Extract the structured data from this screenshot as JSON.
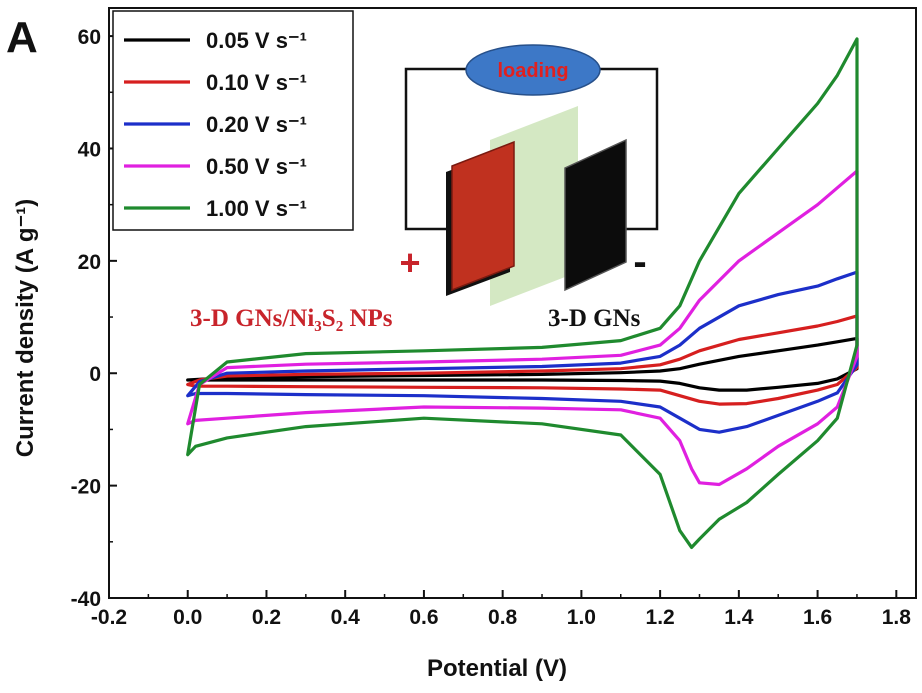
{
  "panel_label": "A",
  "inset": {
    "loading_label": "loading",
    "plus_sign": "+",
    "minus_sign": "-",
    "positive_electrode_label": "3-D GNs/Ni₃S₂ NPs",
    "negative_electrode_label": "3-D GNs"
  },
  "chart_data": {
    "type": "line",
    "title": "",
    "xlabel": "Potential (V)",
    "ylabel": "Current density (A g⁻¹)",
    "xlim": [
      -0.2,
      1.85
    ],
    "ylim": [
      -40,
      65
    ],
    "xticks": [
      -0.2,
      0.0,
      0.2,
      0.4,
      0.6,
      0.8,
      1.0,
      1.2,
      1.4,
      1.6,
      1.8
    ],
    "xtick_labels": [
      "-0.2",
      "0.0",
      "0.2",
      "0.4",
      "0.6",
      "0.8",
      "1.0",
      "1.2",
      "1.4",
      "1.6",
      "1.8"
    ],
    "yticks": [
      -40,
      -20,
      0,
      20,
      40,
      60
    ],
    "ytick_labels": [
      "-40",
      "-20",
      "0",
      "20",
      "40",
      "60"
    ],
    "grid": false,
    "legend_position": "top-left",
    "series": [
      {
        "name": "0.05 V s⁻¹",
        "color": "#000000",
        "x": [
          0.0,
          0.1,
          0.3,
          0.6,
          0.9,
          1.1,
          1.2,
          1.25,
          1.3,
          1.4,
          1.5,
          1.6,
          1.65,
          1.7,
          1.7,
          1.65,
          1.6,
          1.5,
          1.42,
          1.35,
          1.3,
          1.25,
          1.2,
          1.1,
          0.9,
          0.6,
          0.3,
          0.1,
          0.02,
          0.0
        ],
        "y": [
          -1.2,
          -0.8,
          -0.6,
          -0.4,
          -0.2,
          0.1,
          0.4,
          0.8,
          1.6,
          3.0,
          4.0,
          5.0,
          5.6,
          6.2,
          0.8,
          -1.0,
          -1.8,
          -2.5,
          -3.0,
          -3.0,
          -2.6,
          -1.8,
          -1.4,
          -1.3,
          -1.2,
          -1.2,
          -1.2,
          -1.2,
          -1.2,
          -1.2
        ]
      },
      {
        "name": "0.10 V s⁻¹",
        "color": "#d61f1f",
        "x": [
          0.0,
          0.03,
          0.1,
          0.3,
          0.6,
          0.9,
          1.1,
          1.2,
          1.25,
          1.3,
          1.4,
          1.5,
          1.6,
          1.65,
          1.7,
          1.7,
          1.65,
          1.6,
          1.5,
          1.42,
          1.35,
          1.3,
          1.25,
          1.2,
          1.1,
          0.9,
          0.6,
          0.3,
          0.1,
          0.02,
          0.0
        ],
        "y": [
          -2.0,
          -1.2,
          -0.5,
          -0.2,
          0.0,
          0.4,
          0.8,
          1.5,
          2.5,
          4.0,
          6.0,
          7.2,
          8.4,
          9.2,
          10.2,
          1.0,
          -2.0,
          -3.0,
          -4.5,
          -5.4,
          -5.5,
          -5.0,
          -4.0,
          -3.0,
          -2.8,
          -2.6,
          -2.5,
          -2.4,
          -2.3,
          -2.3,
          -2.0
        ]
      },
      {
        "name": "0.20 V s⁻¹",
        "color": "#1c2fc9",
        "x": [
          0.0,
          0.03,
          0.1,
          0.3,
          0.6,
          0.9,
          1.1,
          1.2,
          1.25,
          1.3,
          1.4,
          1.5,
          1.6,
          1.65,
          1.7,
          1.7,
          1.65,
          1.6,
          1.5,
          1.42,
          1.35,
          1.3,
          1.25,
          1.2,
          1.1,
          0.9,
          0.6,
          0.3,
          0.1,
          0.02,
          0.0
        ],
        "y": [
          -4.0,
          -1.5,
          0.0,
          0.4,
          0.8,
          1.2,
          1.8,
          3.0,
          5.0,
          8.0,
          12.0,
          14.0,
          15.5,
          16.8,
          18.0,
          1.5,
          -3.5,
          -5.0,
          -7.5,
          -9.5,
          -10.5,
          -10.0,
          -8.0,
          -6.0,
          -5.0,
          -4.5,
          -4.0,
          -3.8,
          -3.6,
          -3.6,
          -4.0
        ]
      },
      {
        "name": "0.50 V s⁻¹",
        "color": "#e020e0",
        "x": [
          0.0,
          0.03,
          0.1,
          0.3,
          0.6,
          0.9,
          1.1,
          1.2,
          1.25,
          1.3,
          1.4,
          1.5,
          1.6,
          1.65,
          1.7,
          1.7,
          1.65,
          1.6,
          1.5,
          1.42,
          1.35,
          1.3,
          1.28,
          1.25,
          1.2,
          1.1,
          0.9,
          0.6,
          0.3,
          0.1,
          0.02,
          0.0
        ],
        "y": [
          -9.0,
          -2.0,
          1.0,
          1.6,
          2.0,
          2.5,
          3.2,
          5.0,
          8.0,
          13.0,
          20.0,
          25.0,
          30.0,
          33.0,
          36.0,
          3.0,
          -6.0,
          -9.0,
          -13.0,
          -17.0,
          -19.8,
          -19.5,
          -17.0,
          -12.0,
          -8.0,
          -6.5,
          -6.2,
          -6.0,
          -7.0,
          -8.0,
          -8.4,
          -9.0
        ]
      },
      {
        "name": "1.00 V s⁻¹",
        "color": "#1f8a2e",
        "x": [
          0.0,
          0.03,
          0.1,
          0.3,
          0.6,
          0.9,
          1.1,
          1.2,
          1.25,
          1.3,
          1.4,
          1.5,
          1.6,
          1.65,
          1.7,
          1.7,
          1.65,
          1.6,
          1.5,
          1.42,
          1.35,
          1.3,
          1.28,
          1.25,
          1.2,
          1.1,
          0.9,
          0.6,
          0.3,
          0.1,
          0.02,
          0.0
        ],
        "y": [
          -14.5,
          -2.0,
          2.0,
          3.5,
          4.0,
          4.6,
          5.8,
          8.0,
          12.0,
          20.0,
          32.0,
          40.0,
          48.0,
          53.0,
          59.5,
          5.0,
          -8.0,
          -12.0,
          -18.0,
          -23.0,
          -26.0,
          -29.5,
          -31.0,
          -28.0,
          -18.0,
          -11.0,
          -9.0,
          -8.0,
          -9.5,
          -11.5,
          -13.0,
          -14.5
        ]
      }
    ]
  }
}
